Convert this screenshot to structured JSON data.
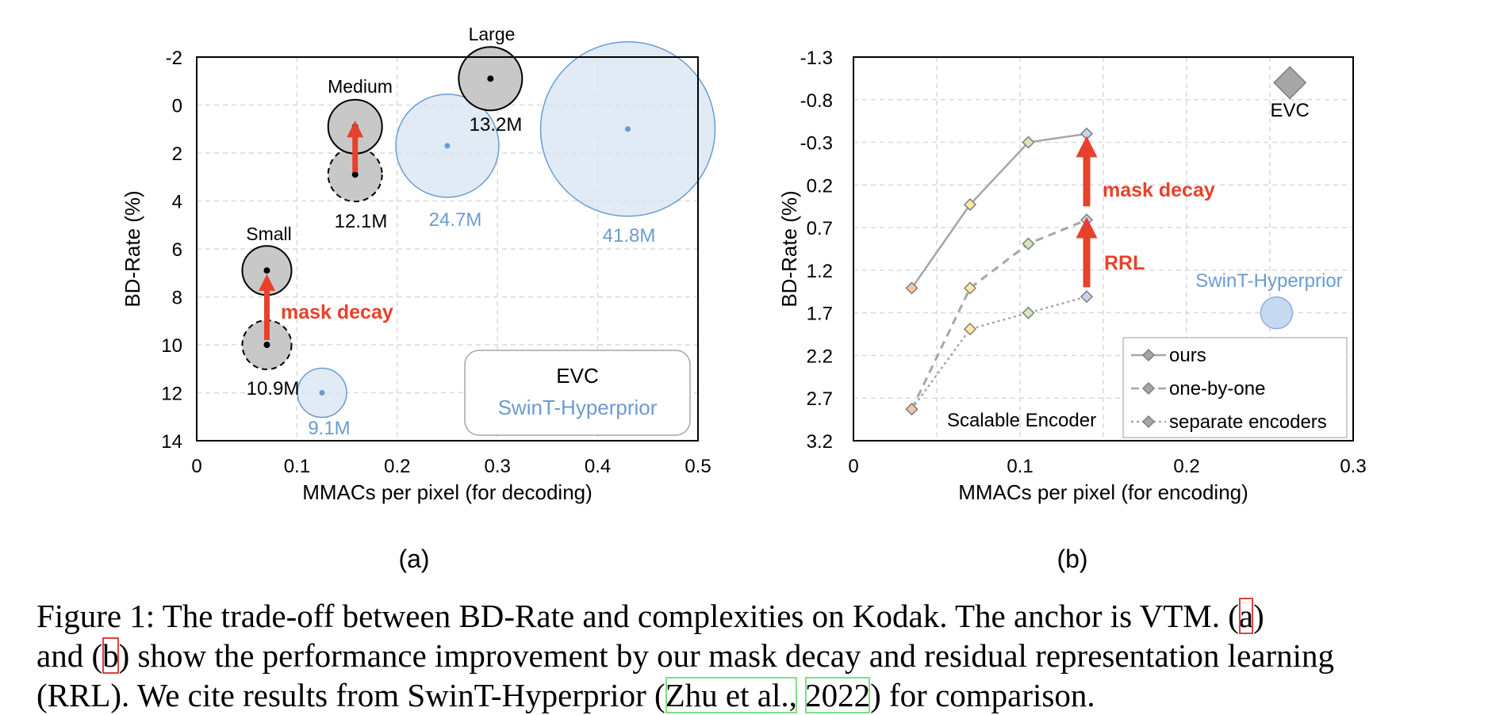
{
  "chart_data": [
    {
      "type": "scatter",
      "subfigure_label": "(a)",
      "xlabel": "MMACs per pixel (for decoding)",
      "ylabel": "BD-Rate (%)",
      "xlim": [
        0,
        0.5
      ],
      "ylim": [
        -2,
        14
      ],
      "y_inverted": true,
      "x_ticks": [
        "0",
        "0.1",
        "0.2",
        "0.3",
        "0.4",
        "0.5"
      ],
      "y_ticks": [
        "-2",
        "0",
        "2",
        "4",
        "6",
        "8",
        "10",
        "12",
        "14"
      ],
      "grid": true,
      "legend_box": {
        "line1": "EVC",
        "line2": "SwinT-Hyperprior",
        "placement": "bottom-right"
      },
      "colors": {
        "evc": "#c8c8c8",
        "evc_stroke": "#000000",
        "swint": "#d6e4f3",
        "swint_stroke": "#6b9bd1",
        "arrow": "#e8412b",
        "annot": "#e8412b"
      },
      "series": [
        {
          "name": "EVC",
          "points": [
            {
              "x": 0.07,
              "y": 10.0,
              "params": "10.9M",
              "params_m": 10.9,
              "dashed": true
            },
            {
              "x": 0.07,
              "y": 6.9,
              "params": "",
              "params_m": 10.9,
              "dashed": false,
              "label": "Small"
            },
            {
              "x": 0.158,
              "y": 2.9,
              "params": "12.1M",
              "params_m": 12.1,
              "dashed": true
            },
            {
              "x": 0.158,
              "y": 0.9,
              "params": "",
              "params_m": 12.1,
              "dashed": false,
              "label": "Medium"
            },
            {
              "x": 0.293,
              "y": -1.1,
              "params": "13.2M",
              "params_m": 13.2,
              "dashed": false,
              "label": "Large"
            }
          ]
        },
        {
          "name": "SwinT-Hyperprior",
          "points": [
            {
              "x": 0.125,
              "y": 12.0,
              "params": "9.1M",
              "params_m": 9.1
            },
            {
              "x": 0.25,
              "y": 1.7,
              "params": "24.7M",
              "params_m": 24.7
            },
            {
              "x": 0.43,
              "y": 1.0,
              "params": "41.8M",
              "params_m": 41.8
            }
          ]
        }
      ],
      "annotations": [
        {
          "text": "mask decay",
          "from_x": 0.07,
          "from_y": 9.8,
          "to_x": 0.07,
          "to_y": 7.4
        },
        {
          "text": "",
          "from_x": 0.158,
          "from_y": 2.8,
          "to_x": 0.158,
          "to_y": 1.0
        }
      ]
    },
    {
      "type": "line",
      "subfigure_label": "(b)",
      "xlabel": "MMACs per pixel (for encoding)",
      "ylabel": "BD-Rate (%)",
      "xlim": [
        0,
        0.3
      ],
      "ylim": [
        -1.3,
        3.2
      ],
      "y_inverted": true,
      "x_ticks": [
        "0",
        "0.1",
        "0.2",
        "0.3"
      ],
      "y_ticks": [
        "-1.3",
        "-0.8",
        "-0.3",
        "0.2",
        "0.7",
        "1.2",
        "1.7",
        "2.2",
        "2.7",
        "3.2"
      ],
      "grid": true,
      "legend": {
        "placement": "bottom-right",
        "entries": [
          "ours",
          "one-by-one",
          "separate encoders"
        ]
      },
      "marker_colors": [
        "#f5c6a5",
        "#fdeaa0",
        "#d4eab5",
        "#c9d4f0"
      ],
      "series": [
        {
          "name": "ours",
          "style": "solid",
          "x": [
            0.035,
            0.07,
            0.105,
            0.14
          ],
          "y": [
            1.41,
            0.43,
            -0.3,
            -0.4
          ]
        },
        {
          "name": "one-by-one",
          "style": "dashed",
          "x": [
            0.035,
            0.07,
            0.105,
            0.14
          ],
          "y": [
            2.83,
            1.41,
            0.89,
            0.61
          ]
        },
        {
          "name": "separate encoders",
          "style": "dotted",
          "x": [
            0.035,
            0.07,
            0.105,
            0.14
          ],
          "y": [
            2.83,
            1.89,
            1.7,
            1.51
          ]
        }
      ],
      "extra_points": [
        {
          "label": "EVC",
          "x": 0.262,
          "y": -1.0,
          "shape": "diamond",
          "color": "#a6a6a6"
        },
        {
          "label": "SwinT-Hyperprior",
          "x": 0.254,
          "y": 1.7,
          "shape": "circle",
          "color": "#c5d9f1"
        }
      ],
      "annotations": [
        {
          "text": "mask decay",
          "x": 0.14,
          "from_y": 0.45,
          "to_y": -0.25
        },
        {
          "text": "RRL",
          "x": 0.14,
          "from_y": 1.4,
          "to_y": 0.7
        },
        {
          "text": "Scalable Encoder"
        }
      ]
    }
  ],
  "caption": {
    "line1_a": "Figure 1:  The trade-off between BD-Rate and complexities on Kodak.  The anchor is VTM. (",
    "line1_ref": "a",
    "line1_b": ")",
    "line2_a": "and (",
    "line2_ref": "b",
    "line2_b": ") show the performance improvement by our mask decay and residual representation learning",
    "line3_a": "(RRL). We cite results from SwinT-Hyperprior (",
    "line3_cite1": "Zhu et al.,",
    "line3_sp": " ",
    "line3_cite2": "2022",
    "line3_b": ") for comparison."
  }
}
